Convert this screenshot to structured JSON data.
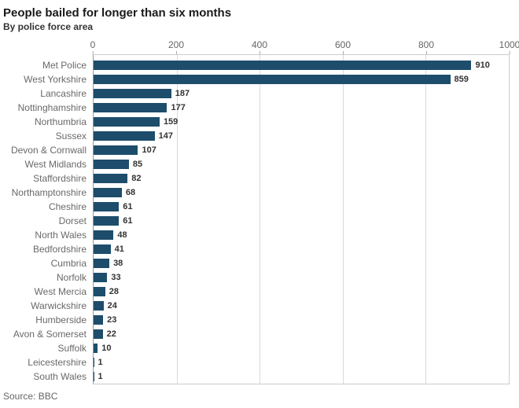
{
  "chart_data": {
    "type": "bar",
    "orientation": "horizontal",
    "title": "People bailed for longer than six months",
    "subtitle": "By police force area",
    "source": "Source: BBC",
    "categories": [
      "Met Police",
      "West Yorkshire",
      "Lancashire",
      "Nottinghamshire",
      "Northumbria",
      "Sussex",
      "Devon & Cornwall",
      "West Midlands",
      "Staffordshire",
      "Northamptonshire",
      "Cheshire",
      "Dorset",
      "North Wales",
      "Bedfordshire",
      "Cumbria",
      "Norfolk",
      "West Mercia",
      "Warwickshire",
      "Humberside",
      "Avon & Somerset",
      "Suffolk",
      "Leicestershire",
      "South Wales"
    ],
    "values": [
      910,
      859,
      187,
      177,
      159,
      147,
      107,
      85,
      82,
      68,
      61,
      61,
      48,
      41,
      38,
      33,
      28,
      24,
      23,
      22,
      10,
      1,
      1
    ],
    "xlim": [
      0,
      1000
    ],
    "xticks": [
      0,
      200,
      400,
      600,
      800,
      1000
    ],
    "grid": "vertical",
    "legend": "none",
    "colors": {
      "bar": "#1d4d6b",
      "gridline": "#d9d9d9",
      "axis_line": "#999999",
      "plot_border": "#cccccc",
      "tick_label": "#666666",
      "category_label": "#696969",
      "value_label": "#333333",
      "title": "#1a1a1a",
      "subtitle": "#333333",
      "source": "#666666"
    }
  }
}
